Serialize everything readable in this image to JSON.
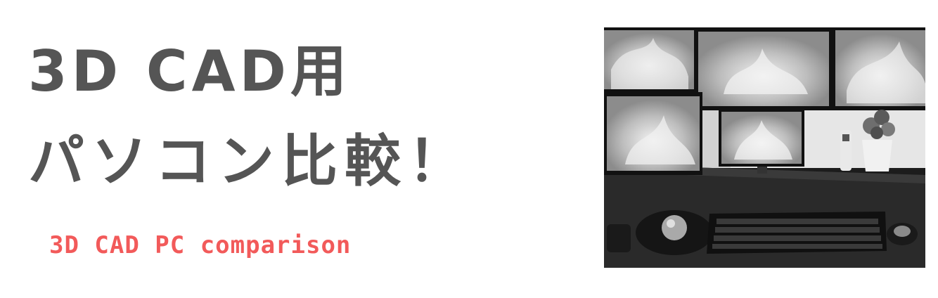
{
  "headline": {
    "line1": "3D CAD用",
    "line2": "パソコン比較！"
  },
  "subtitle": "3D CAD PC comparison",
  "photo": {
    "icon": "desk-setup-photo",
    "colors": {
      "wall": "#e9e9e9",
      "desk": "#2b2b2b",
      "screen": "#cfcfcf"
    }
  },
  "colors": {
    "headline": "#555555",
    "subtitle": "#f25a5a",
    "background": "#ffffff"
  }
}
